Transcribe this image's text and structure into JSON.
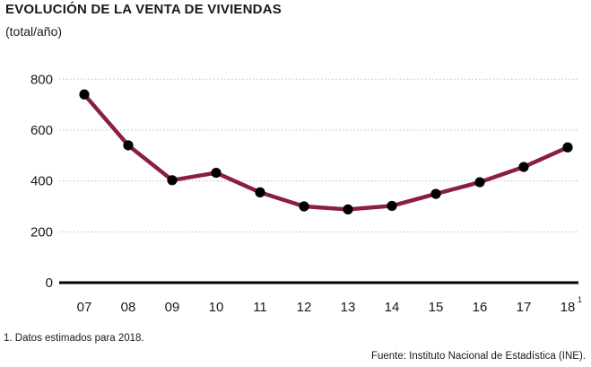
{
  "chart_data": {
    "type": "line",
    "title": "EVOLUCIÓN DE LA VENTA DE VIVIENDAS",
    "subtitle": "(total/año)",
    "categories": [
      "07",
      "08",
      "09",
      "10",
      "11",
      "12",
      "13",
      "14",
      "15",
      "16",
      "17",
      "18"
    ],
    "category_superscripts": {
      "18": "1"
    },
    "series": [
      {
        "values": [
          740,
          540,
          403,
          432,
          355,
          300,
          288,
          302,
          349,
          395,
          455,
          532
        ]
      }
    ],
    "yticks": [
      0,
      200,
      400,
      600,
      800
    ],
    "ylim": [
      0,
      860
    ],
    "xlabel": "",
    "ylabel": "",
    "grid": true,
    "line_color": "#8a1f3e",
    "marker_color": "#000000",
    "footnote": "1. Datos estimados para 2018.",
    "source": "Fuente: Instituto Nacional de Estadística (INE)."
  }
}
